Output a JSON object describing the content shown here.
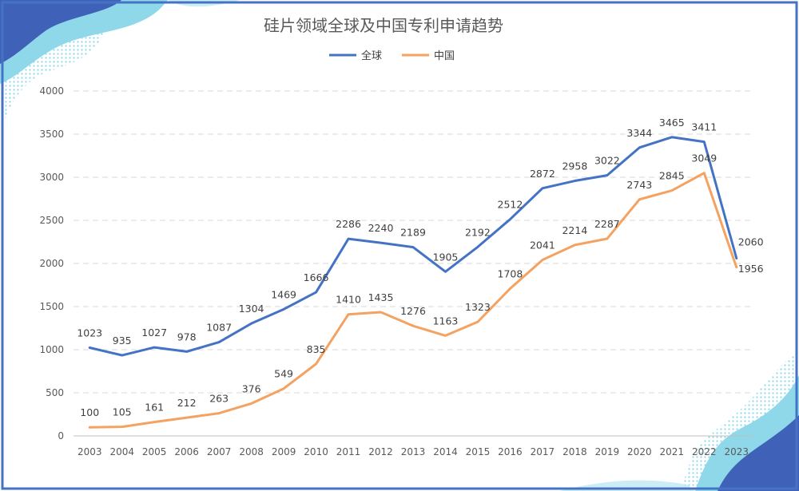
{
  "chart_data": {
    "type": "line",
    "title": "硅片领域全球及中国专利申请趋势",
    "xlabel": "",
    "ylabel": "",
    "categories": [
      "2003",
      "2004",
      "2005",
      "2006",
      "2007",
      "2008",
      "2009",
      "2010",
      "2011",
      "2012",
      "2013",
      "2014",
      "2015",
      "2016",
      "2017",
      "2018",
      "2019",
      "2020",
      "2021",
      "2022",
      "2023"
    ],
    "series": [
      {
        "name": "全球",
        "color": "#4472C4",
        "values": [
          1023,
          935,
          1027,
          978,
          1087,
          1304,
          1469,
          1666,
          2286,
          2240,
          2189,
          1905,
          2192,
          2512,
          2872,
          2958,
          3022,
          3344,
          3465,
          3411,
          2060
        ]
      },
      {
        "name": "中国",
        "color": "#F4A261",
        "values": [
          100,
          105,
          161,
          212,
          263,
          376,
          549,
          835,
          1410,
          1435,
          1276,
          1163,
          1323,
          1708,
          2041,
          2214,
          2287,
          2743,
          2845,
          3049,
          1956
        ]
      }
    ],
    "ylim": [
      0,
      4000
    ],
    "yticks": [
      0,
      500,
      1000,
      1500,
      2000,
      2500,
      3000,
      3500,
      4000
    ],
    "grid": true,
    "legend_position": "top"
  },
  "colors": {
    "frame": "#4472C4",
    "grid": "#D9D9D9",
    "deco_dark": "#3F62B8",
    "deco_light": "#7FD3E8"
  }
}
